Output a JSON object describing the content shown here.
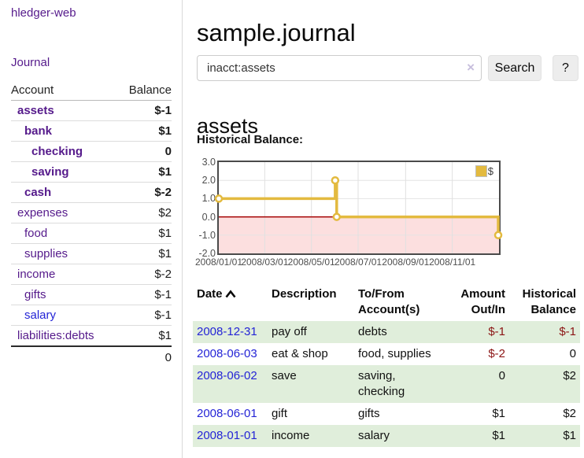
{
  "app": {
    "title": "hledger-web"
  },
  "sidebar": {
    "journal_label": "Journal",
    "accounts": {
      "header_account": "Account",
      "header_balance": "Balance",
      "rows": [
        {
          "name": "assets",
          "depth": 1,
          "balance": "$-1",
          "bold": true,
          "neg": true
        },
        {
          "name": "bank",
          "depth": 2,
          "balance": "$1",
          "bold": true,
          "neg": false
        },
        {
          "name": "checking",
          "depth": 3,
          "balance": "0",
          "bold": true,
          "neg": false
        },
        {
          "name": "saving",
          "depth": 3,
          "balance": "$1",
          "bold": true,
          "neg": false
        },
        {
          "name": "cash",
          "depth": 2,
          "balance": "$-2",
          "bold": true,
          "neg": true
        },
        {
          "name": "expenses",
          "depth": 1,
          "balance": "$2",
          "bold": false,
          "neg": false
        },
        {
          "name": "food",
          "depth": 2,
          "balance": "$1",
          "bold": false,
          "neg": false
        },
        {
          "name": "supplies",
          "depth": 2,
          "balance": "$1",
          "bold": false,
          "neg": false
        },
        {
          "name": "income",
          "depth": 1,
          "balance": "$-2",
          "bold": false,
          "neg": true
        },
        {
          "name": "gifts",
          "depth": 2,
          "balance": "$-1",
          "bold": false,
          "neg": true
        },
        {
          "name": "salary",
          "depth": 2,
          "balance": "$-1",
          "bold": false,
          "neg": true,
          "unvisited": true
        },
        {
          "name": "liabilities:debts",
          "depth": 1,
          "balance": "$1",
          "bold": false,
          "neg": false
        }
      ],
      "total": "0"
    }
  },
  "main": {
    "title": "sample.journal",
    "search": {
      "value": "inacct:assets",
      "clear_icon": "×",
      "button_label": "Search",
      "help_label": "?"
    },
    "account_heading": "assets"
  },
  "chart_data": {
    "type": "line",
    "step": true,
    "title": "Historical Balance:",
    "series": [
      {
        "name": "$",
        "color": "#e3ba3f",
        "points": [
          [
            "2008-01-01",
            1
          ],
          [
            "2008-06-01",
            2
          ],
          [
            "2008-06-03",
            0
          ],
          [
            "2008-12-31",
            -1
          ]
        ]
      }
    ],
    "x_ticks": [
      "2008/01/01",
      "2008/03/01",
      "2008/05/01",
      "2008/07/01",
      "2008/09/01",
      "2008/11/01"
    ],
    "y_tick_labels": [
      "3.0",
      "2.0",
      "1.0",
      "0.0",
      "-1.0",
      "-2.0"
    ],
    "xlim": [
      "2008-01-01",
      "2009-01-01"
    ],
    "ylim": [
      -2,
      3
    ],
    "grid": true,
    "negative_region_color": "#fcdfdf",
    "zero_line_color": "#a40000",
    "legend": {
      "label": "$",
      "position": "top-right"
    }
  },
  "register": {
    "headers": [
      "Date",
      "Description",
      "To/From Account(s)",
      "Amount Out/In",
      "Historical Balance"
    ],
    "sort": {
      "column": "Date",
      "direction": "asc"
    },
    "rows": [
      {
        "date": "2008-12-31",
        "description": "pay off",
        "accounts": "debts",
        "amount": "$-1",
        "balance": "$-1"
      },
      {
        "date": "2008-06-03",
        "description": "eat & shop",
        "accounts": "food, supplies",
        "amount": "$-2",
        "balance": "0"
      },
      {
        "date": "2008-06-02",
        "description": "save",
        "accounts": "saving, checking",
        "amount": "0",
        "balance": "$2"
      },
      {
        "date": "2008-06-01",
        "description": "gift",
        "accounts": "gifts",
        "amount": "$1",
        "balance": "$2"
      },
      {
        "date": "2008-01-01",
        "description": "income",
        "accounts": "salary",
        "amount": "$1",
        "balance": "$1"
      }
    ]
  },
  "colors": {
    "link_purple": "#551a8b",
    "link_blue": "#2424d6",
    "negative_strong": "#8e1212",
    "negative_muted": "#ad6262",
    "table_negative": "#8b1414",
    "row_stripe_green": "#e0eedb",
    "chart_line_gold": "#e3ba3f",
    "chart_negative_fill": "#fcdfdf",
    "chart_zero_line": "#a40000"
  }
}
